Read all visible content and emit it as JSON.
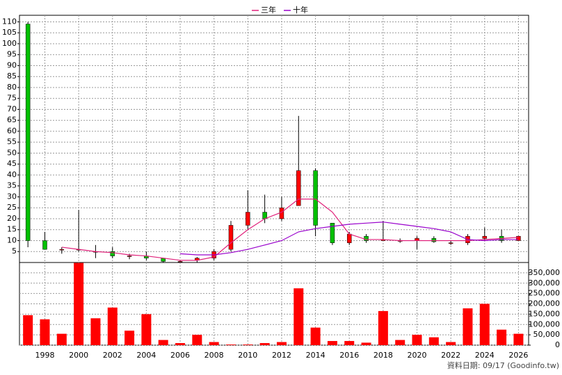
{
  "chart_data": [
    {
      "type": "candlestick",
      "x": [
        1997,
        1998,
        1999,
        2000,
        2001,
        2002,
        2003,
        2004,
        2005,
        2006,
        2007,
        2008,
        2009,
        2010,
        2011,
        2012,
        2013,
        2014,
        2015,
        2016,
        2017,
        2018,
        2019,
        2020,
        2021,
        2022,
        2023,
        2024,
        2025,
        2026
      ],
      "open": [
        109,
        10,
        6,
        6,
        5,
        5,
        3,
        3,
        2,
        0.5,
        1,
        2,
        6,
        17,
        23,
        20,
        26,
        42,
        18,
        9,
        12,
        10,
        10,
        10,
        11,
        9,
        9,
        11,
        12,
        10
      ],
      "high": [
        110,
        14,
        7,
        24,
        8,
        7,
        4,
        5,
        2,
        1,
        2.5,
        6,
        19,
        33,
        31,
        30,
        67,
        43,
        18,
        14,
        13,
        19,
        11,
        12,
        12,
        10,
        13,
        16,
        15,
        12
      ],
      "low": [
        7,
        6,
        4,
        5,
        2,
        2,
        1.5,
        1,
        0,
        0,
        0,
        1,
        5,
        15,
        18,
        19,
        26,
        12,
        8,
        8,
        9,
        10,
        9,
        6,
        9,
        8,
        8,
        10,
        9,
        10
      ],
      "close": [
        10,
        6,
        6,
        6,
        5,
        3,
        3,
        2,
        0.5,
        0.5,
        2,
        5,
        17,
        23,
        20,
        25,
        42,
        17,
        9,
        13,
        10,
        10.5,
        10,
        11,
        9.5,
        9,
        12,
        12,
        10,
        12
      ],
      "up_color": "#ff0000",
      "down_color": "#00c000",
      "wick_color": "#000000",
      "series": [
        {
          "name": "三年",
          "color": "#e0207a",
          "values": [
            null,
            null,
            7,
            6,
            5,
            4.5,
            3.5,
            3,
            2,
            1,
            1,
            2.5,
            9,
            15,
            20,
            23,
            29,
            29,
            23,
            13,
            10.5,
            10.5,
            10,
            10,
            10,
            10,
            10,
            10.5,
            11,
            11.5
          ]
        },
        {
          "name": "十年",
          "color": "#9900cc",
          "values": [
            null,
            null,
            null,
            null,
            null,
            null,
            null,
            null,
            null,
            4,
            3.5,
            3.5,
            4.5,
            6,
            8,
            10,
            14,
            15.5,
            16.5,
            17.5,
            18,
            18.5,
            17.5,
            16.5,
            15.5,
            14,
            10.5,
            10,
            10.5,
            10.5
          ]
        }
      ],
      "xlim": [
        1996.5,
        2026.6
      ],
      "xticks": [
        1998,
        2000,
        2002,
        2004,
        2006,
        2008,
        2010,
        2012,
        2014,
        2016,
        2018,
        2020,
        2022,
        2024,
        2026
      ],
      "ylim": [
        0,
        113
      ],
      "yticks": [
        5,
        10,
        15,
        20,
        25,
        30,
        35,
        40,
        45,
        50,
        55,
        60,
        65,
        70,
        75,
        80,
        85,
        90,
        95,
        100,
        105,
        110
      ],
      "grid": true
    },
    {
      "type": "bar",
      "x": [
        1997,
        1998,
        1999,
        2000,
        2001,
        2002,
        2003,
        2004,
        2005,
        2006,
        2007,
        2008,
        2009,
        2010,
        2011,
        2012,
        2013,
        2014,
        2015,
        2016,
        2017,
        2018,
        2019,
        2020,
        2021,
        2022,
        2023,
        2024,
        2025,
        2026
      ],
      "values": [
        145000,
        125000,
        55000,
        398000,
        130000,
        182000,
        70000,
        150000,
        25000,
        10000,
        50000,
        15000,
        3000,
        3000,
        10000,
        15000,
        275000,
        85000,
        20000,
        20000,
        12000,
        165000,
        25000,
        50000,
        38000,
        15000,
        178000,
        200000,
        75000,
        55000
      ],
      "color": "#ff0000",
      "xlim": [
        1996.5,
        2026.6
      ],
      "xticks": [
        1998,
        2000,
        2002,
        2004,
        2006,
        2008,
        2010,
        2012,
        2014,
        2016,
        2018,
        2020,
        2022,
        2024,
        2026
      ],
      "ylim": [
        0,
        400000
      ],
      "yticks": [
        0,
        {
          "value": 50000,
          "label": "50,000"
        },
        {
          "value": 100000,
          "label": "100,000"
        },
        {
          "value": 150000,
          "label": "150,000"
        },
        {
          "value": 200000,
          "label": "200,000"
        },
        {
          "value": 250000,
          "label": "250,000"
        },
        {
          "value": 300000,
          "label": "300,000"
        },
        {
          "value": 350000,
          "label": "350,000"
        }
      ],
      "grid": true
    }
  ],
  "footer": "資料日期: 09/17  (Goodinfo.tw)"
}
